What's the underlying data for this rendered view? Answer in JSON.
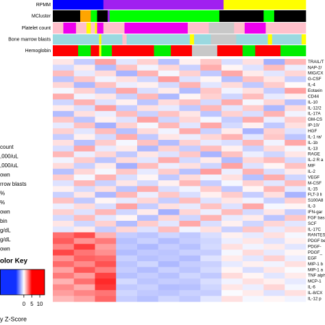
{
  "chart_data": {
    "type": "heatmap",
    "tracks": [
      {
        "name": "RPMM",
        "segments": [
          {
            "color": "#0000ff",
            "n": 24
          },
          {
            "color": "#a020f0",
            "n": 57
          },
          {
            "color": "#ffff00",
            "n": 39
          }
        ]
      },
      {
        "name": "MCluster",
        "segments": [
          {
            "color": "#000000",
            "n": 13
          },
          {
            "color": "#ffa500",
            "n": 5
          },
          {
            "color": "#00ff00",
            "n": 3
          },
          {
            "color": "#000000",
            "n": 5
          },
          {
            "color": "#a020f0",
            "n": 1
          },
          {
            "color": "#00ff00",
            "n": 52
          },
          {
            "color": "#000000",
            "n": 21
          },
          {
            "color": "#00ff00",
            "n": 5
          },
          {
            "color": "#000000",
            "n": 15
          }
        ]
      },
      {
        "name": "Platelet count",
        "segments": [
          {
            "color": "#ffc0cb",
            "n": 5
          },
          {
            "color": "#ee00ee",
            "n": 6
          },
          {
            "color": "#ffc0cb",
            "n": 5
          },
          {
            "color": "#ffff00",
            "n": 2
          },
          {
            "color": "#ffc0cb",
            "n": 2
          },
          {
            "color": "#ffff00",
            "n": 1
          },
          {
            "color": "#ee00ee",
            "n": 3
          },
          {
            "color": "#ffc0cb",
            "n": 10
          },
          {
            "color": "#ee00ee",
            "n": 30
          },
          {
            "color": "#ffc0cb",
            "n": 10
          },
          {
            "color": "#c8c8c8",
            "n": 12
          },
          {
            "color": "#ffc0cb",
            "n": 5
          },
          {
            "color": "#ee00ee",
            "n": 10
          },
          {
            "color": "#ffc0cb",
            "n": 19
          }
        ]
      },
      {
        "name": "Bone marrow blasts",
        "segments": [
          {
            "color": "#9ad9e0",
            "n": 22
          },
          {
            "color": "#ffff00",
            "n": 1
          },
          {
            "color": "#9ad9e0",
            "n": 10
          },
          {
            "color": "#ffc0cb",
            "n": 2
          },
          {
            "color": "#9ad9e0",
            "n": 30
          },
          {
            "color": "#ffff00",
            "n": 2
          },
          {
            "color": "#9ad9e0",
            "n": 8
          },
          {
            "color": "#c8c8c8",
            "n": 12
          },
          {
            "color": "#9ad9e0",
            "n": 15
          },
          {
            "color": "#ffff00",
            "n": 2
          },
          {
            "color": "#9ad9e0",
            "n": 14
          },
          {
            "color": "#ffff00",
            "n": 2
          }
        ]
      },
      {
        "name": "Hemoglobin",
        "segments": [
          {
            "color": "#ff0000",
            "n": 12
          },
          {
            "color": "#00ee00",
            "n": 6
          },
          {
            "color": "#ff0000",
            "n": 4
          },
          {
            "color": "#ffff00",
            "n": 1
          },
          {
            "color": "#00ee00",
            "n": 5
          },
          {
            "color": "#ff0000",
            "n": 20
          },
          {
            "color": "#00ee00",
            "n": 8
          },
          {
            "color": "#ff0000",
            "n": 10
          },
          {
            "color": "#c8c8c8",
            "n": 12
          },
          {
            "color": "#ff0000",
            "n": 12
          },
          {
            "color": "#00ee00",
            "n": 6
          },
          {
            "color": "#ff0000",
            "n": 12
          },
          {
            "color": "#00ee00",
            "n": 12
          }
        ]
      }
    ],
    "rows": [
      {
        "name": "TRAIL/T",
        "values": [
          0.5,
          -1.2,
          1.8,
          -0.6,
          0.9,
          -1.5,
          0.3,
          1.1,
          -0.8,
          0.6,
          -1.9,
          1.4
        ]
      },
      {
        "name": "NAP-2/",
        "values": [
          -0.9,
          0.4,
          -1.6,
          1.2,
          -0.3,
          0.8,
          -1.1,
          1.6,
          0.2,
          -0.7,
          1.3,
          -0.4
        ]
      },
      {
        "name": "MIG/CX",
        "values": [
          1.3,
          -0.5,
          0.7,
          -1.8,
          1.5,
          -0.2,
          0.9,
          -1.3,
          1.7,
          0.4,
          -0.6,
          0.8
        ]
      },
      {
        "name": "G-CSF",
        "values": [
          -1.4,
          1.1,
          -0.3,
          0.6,
          -1.0,
          1.9,
          -0.7,
          0.2,
          -1.5,
          1.2,
          0.5,
          -1.1
        ]
      },
      {
        "name": "IL-4",
        "values": [
          0.8,
          -1.7,
          1.2,
          -0.4,
          0.3,
          -0.9,
          1.5,
          -0.6,
          0.7,
          -1.3,
          1.0,
          0.1
        ]
      },
      {
        "name": "Eotaxin",
        "values": [
          -0.2,
          0.9,
          -1.3,
          1.7,
          -0.8,
          0.4,
          -1.6,
          1.1,
          -0.3,
          0.6,
          -1.2,
          1.8
        ]
      },
      {
        "name": "CD44",
        "values": [
          1.6,
          -0.3,
          0.5,
          -1.1,
          1.4,
          -1.7,
          0.2,
          0.9,
          -1.0,
          1.3,
          -0.5,
          0.3
        ]
      },
      {
        "name": "IL-10",
        "values": [
          -1.0,
          1.5,
          -0.7,
          0.3,
          -1.4,
          0.7,
          1.2,
          -0.9,
          1.6,
          -0.2,
          0.8,
          -1.5
        ]
      },
      {
        "name": "IL-12/2",
        "values": [
          0.4,
          -0.8,
          1.9,
          -1.2,
          0.6,
          -0.5,
          -1.3,
          1.4,
          -0.6,
          1.0,
          -1.7,
          0.7
        ]
      },
      {
        "name": "IL-17A",
        "values": [
          -1.6,
          0.6,
          -0.4,
          1.3,
          -1.1,
          1.2,
          0.5,
          -1.4,
          0.9,
          -0.8,
          1.5,
          -0.3
        ]
      },
      {
        "name": "GM-CS",
        "values": [
          1.1,
          -1.4,
          0.3,
          -0.7,
          1.8,
          -1.0,
          0.8,
          -0.2,
          -1.2,
          1.6,
          -0.4,
          1.0
        ]
      },
      {
        "name": "IP-10/",
        "values": [
          -0.5,
          1.2,
          -1.9,
          0.9,
          -0.2,
          1.4,
          -0.6,
          1.7,
          -0.9,
          0.3,
          -1.3,
          0.6
        ]
      },
      {
        "name": "HGF",
        "values": [
          0.9,
          -0.6,
          1.3,
          -1.5,
          0.7,
          -0.3,
          1.6,
          -1.1,
          0.4,
          -1.8,
          0.9,
          -0.7
        ]
      },
      {
        "name": "IL-1 ra/",
        "values": [
          -1.2,
          0.3,
          -0.9,
          1.6,
          -1.3,
          0.5,
          -0.4,
          0.8,
          1.5,
          -0.6,
          1.1,
          -1.4
        ]
      },
      {
        "name": "IL-1b",
        "values": [
          0.6,
          -1.5,
          1.0,
          -0.2,
          1.2,
          -1.6,
          0.9,
          -0.5,
          -0.8,
          1.4,
          -0.3,
          1.7
        ]
      },
      {
        "name": "IL-13",
        "values": [
          -0.8,
          1.7,
          -0.5,
          0.4,
          -1.7,
          0.9,
          -1.2,
          1.3,
          0.3,
          -1.1,
          0.7,
          -0.2
        ]
      },
      {
        "name": "RAGE",
        "values": [
          1.4,
          -0.4,
          0.8,
          -1.3,
          0.5,
          -0.7,
          1.1,
          -1.8,
          1.2,
          -0.4,
          -1.0,
          0.5
        ]
      },
      {
        "name": "IL-2 R a",
        "values": [
          -0.3,
          1.0,
          -1.4,
          0.7,
          -0.6,
          1.6,
          -0.9,
          0.4,
          -1.6,
          0.8,
          1.3,
          -0.9
        ]
      },
      {
        "name": "MIF",
        "values": [
          0.7,
          -1.1,
          0.4,
          -1.9,
          1.3,
          -0.4,
          0.6,
          -1.0,
          1.8,
          -0.7,
          0.2,
          1.2
        ]
      },
      {
        "name": "IL-2",
        "values": [
          -1.5,
          0.8,
          -0.2,
          1.1,
          -0.5,
          1.0,
          -1.5,
          1.9,
          -0.4,
          1.5,
          -0.8,
          0.4
        ]
      },
      {
        "name": "VEGF",
        "values": [
          1.0,
          -0.2,
          1.5,
          -0.8,
          0.2,
          -1.3,
          0.7,
          -0.3,
          0.6,
          -1.5,
          1.6,
          -1.0
        ]
      },
      {
        "name": "M-CSF",
        "values": [
          -0.7,
          1.4,
          -1.1,
          0.5,
          -0.9,
          0.3,
          1.4,
          -1.2,
          -0.2,
          0.9,
          -0.6,
          1.3
        ]
      },
      {
        "name": "IL-15",
        "values": [
          0.3,
          -0.9,
          0.6,
          -1.4,
          1.6,
          -0.8,
          -0.3,
          1.0,
          -1.3,
          0.2,
          1.4,
          -0.5
        ]
      },
      {
        "name": "FLT-3 li",
        "values": [
          -1.1,
          0.5,
          -1.7,
          1.4,
          -0.4,
          1.1,
          -0.8,
          0.3,
          1.0,
          -1.2,
          0.6,
          -1.8
        ]
      },
      {
        "name": "S100A8",
        "values": [
          1.2,
          -1.3,
          0.2,
          -0.5,
          0.8,
          -1.2,
          1.3,
          -0.7,
          0.5,
          -0.3,
          -1.1,
          0.9
        ]
      },
      {
        "name": "IL-3",
        "values": [
          -0.4,
          0.7,
          -0.8,
          1.8,
          -1.2,
          0.6,
          -0.5,
          1.2,
          -0.7,
          1.7,
          -0.2,
          0.2
        ]
      },
      {
        "name": "IFN-gar",
        "values": [
          0.9,
          -0.7,
          1.4,
          -1.0,
          0.4,
          -1.9,
          0.8,
          -0.4,
          1.3,
          -0.9,
          0.5,
          -1.2
        ]
      },
      {
        "name": "FGF bas",
        "values": [
          -0.9,
          1.3,
          -0.6,
          0.2,
          -1.5,
          0.8,
          -1.0,
          1.5,
          -0.5,
          0.4,
          -1.4,
          1.1
        ]
      },
      {
        "name": "SCF",
        "values": [
          0.5,
          -1.0,
          0.9,
          -1.6,
          1.0,
          -0.6,
          1.7,
          -0.8,
          0.3,
          -1.0,
          0.8,
          -0.6
        ]
      },
      {
        "name": "IL-17C",
        "values": [
          -0.6,
          0.4,
          -1.2,
          0.8,
          -0.7,
          1.3,
          -0.3,
          0.6,
          -1.1,
          1.1,
          -0.5,
          0.7
        ]
      },
      {
        "name": "RANTES",
        "values": [
          2.8,
          3.5,
          1.5,
          -1.2,
          -1.4,
          -1.0,
          -1.3,
          -0.8,
          0.3,
          -0.5,
          0.6,
          -0.2
        ]
      },
      {
        "name": "PDGF bet",
        "values": [
          3.2,
          2.1,
          2.6,
          -1.5,
          -1.1,
          -1.6,
          -1.2,
          -1.0,
          -0.4,
          0.5,
          -0.7,
          0.3
        ]
      },
      {
        "name": "PDGF-",
        "values": [
          2.4,
          3.8,
          1.9,
          -1.3,
          -1.7,
          -1.2,
          -1.5,
          -0.9,
          0.6,
          -0.3,
          0.4,
          -0.6
        ]
      },
      {
        "name": "PDGF_",
        "values": [
          3.6,
          2.7,
          2.2,
          -1.6,
          -1.3,
          -1.4,
          -1.1,
          -1.2,
          -0.2,
          0.7,
          -0.5,
          0.2
        ]
      },
      {
        "name": "EGF",
        "values": [
          2.1,
          3.1,
          2.9,
          -1.1,
          -1.5,
          -1.3,
          -1.6,
          -0.7,
          0.4,
          -0.6,
          0.9,
          -0.4
        ]
      },
      {
        "name": "MIP-1 b",
        "values": [
          2.9,
          2.3,
          3.4,
          -1.4,
          -1.0,
          -1.7,
          -1.2,
          -1.1,
          -0.5,
          0.3,
          -0.3,
          0.6
        ]
      },
      {
        "name": "MIP-1 a",
        "values": [
          1.8,
          3.3,
          2.5,
          -1.2,
          -1.6,
          -1.1,
          -1.4,
          -0.9,
          0.2,
          -0.8,
          0.5,
          -0.1
        ]
      },
      {
        "name": "TNF alph",
        "values": [
          2.6,
          1.9,
          3.7,
          -1.5,
          -1.2,
          -1.5,
          -1.0,
          -1.3,
          0.7,
          0.2,
          -0.6,
          0.4
        ]
      },
      {
        "name": "MCP-1",
        "values": [
          1.5,
          2.8,
          4.2,
          -0.9,
          -1.4,
          -1.2,
          -1.3,
          -0.8,
          -0.3,
          0.6,
          0.3,
          -0.5
        ]
      },
      {
        "name": "IL-6",
        "values": [
          2.3,
          1.6,
          3.9,
          -1.3,
          -1.1,
          -1.6,
          -1.5,
          -1.0,
          0.5,
          -0.4,
          0.8,
          -0.2
        ]
      },
      {
        "name": "IL-8/CX",
        "values": [
          1.9,
          2.4,
          2.7,
          -1.0,
          -1.3,
          -1.4,
          -1.1,
          -1.2,
          -0.1,
          0.4,
          -0.7,
          0.6
        ]
      },
      {
        "name": "IL-12 p",
        "values": [
          1.4,
          1.8,
          3.0,
          -1.2,
          -1.5,
          -1.0,
          -1.3,
          -0.6,
          0.6,
          -0.2,
          0.2,
          -0.3
        ]
      }
    ],
    "legend_items": [
      "count",
      ",000/uL",
      ",000/uL",
      "own",
      "rrow blasts",
      "%",
      "%",
      "own",
      "bin",
      " g/dL",
      " g/dL",
      "own"
    ],
    "color_key": {
      "title": "olor Key",
      "xlabel": "y Z-Score",
      "xlim": [
        -15,
        13
      ],
      "xticks": [
        0,
        5,
        10
      ],
      "low_color": "#1030ff",
      "high_color": "#ff0000"
    }
  }
}
